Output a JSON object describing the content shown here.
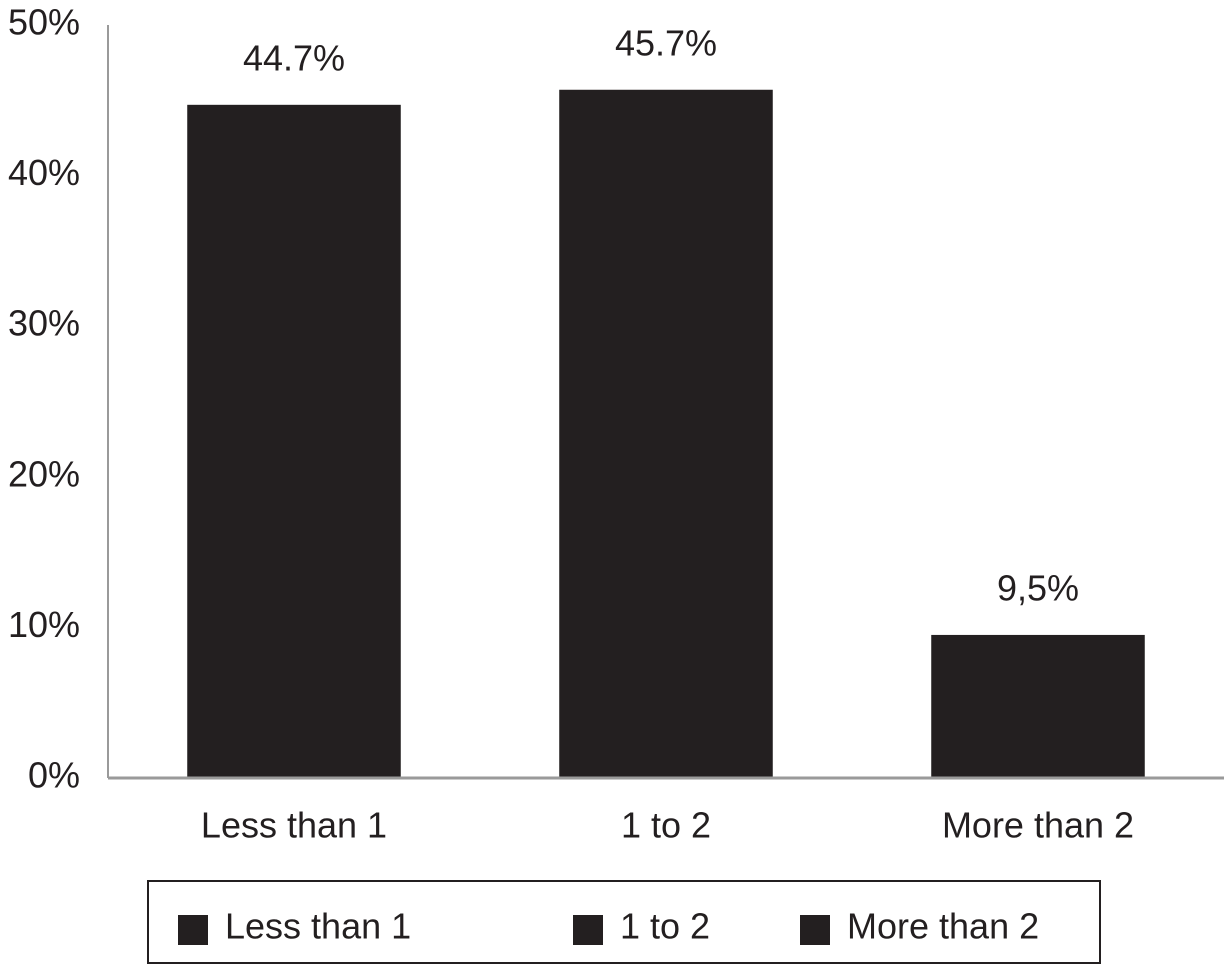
{
  "chart_data": {
    "type": "bar",
    "categories": [
      "Less than 1",
      "1 to 2",
      "More than 2"
    ],
    "values": [
      44.7,
      45.7,
      9.5
    ],
    "value_labels": [
      "44.7%",
      "45.7%",
      "9,5%"
    ],
    "color": "#231f20",
    "ylim": [
      0,
      50
    ],
    "yticks": [
      {
        "value": 0,
        "label": "0%"
      },
      {
        "value": 10,
        "label": "10%"
      },
      {
        "value": 20,
        "label": "20%"
      },
      {
        "value": 30,
        "label": "30%"
      },
      {
        "value": 40,
        "label": "40%"
      },
      {
        "value": 50,
        "label": "50%"
      }
    ],
    "grid": false,
    "legend": "bottom"
  }
}
